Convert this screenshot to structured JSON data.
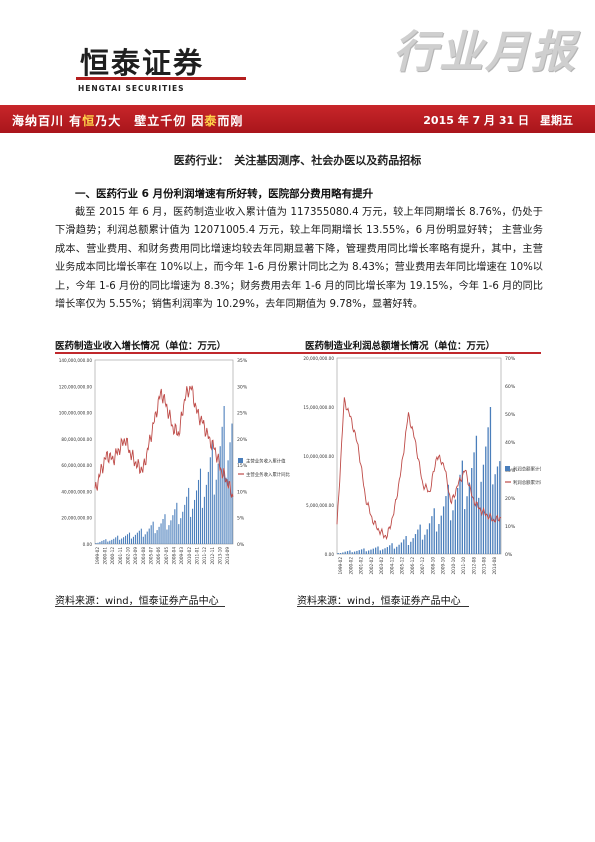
{
  "header": {
    "logo_cn": "恒泰证券",
    "logo_en": "HENGTAI SECURITIES",
    "report_type": "行业月报"
  },
  "banner": {
    "slogan_parts": [
      "海纳百川 有",
      "恒",
      "乃大　壁立千仞 因",
      "泰",
      "而刚"
    ],
    "date": "2015 年 7 月 31 日　星期五"
  },
  "doc_title": "医药行业：　关注基因测序、社会办医以及药品招标",
  "section_heading": "一、医药行业 6 月份利润增速有所好转，医院部分费用略有提升",
  "paragraph": "截至 2015 年 6 月，医药制造业收入累计值为 117355080.4 万元，较上年同期增长 8.76%，仍处于下滑趋势；利润总额累计值为 12071005.4 万元，较上年同期增长 13.55%，6 月份明显好转； 主营业务成本、营业费用、和财务费用同比增速均较去年同期显著下降，管理费用同比增长率略有提升，其中，主营业务成本同比增长率在 10%以上，而今年 1-6 月份累计同比之为 8.43%；营业费用去年同比增速在 10%以上，今年 1-6 月份的同比增速为 8.3%；财务费用去年 1-6 月的同比增长率为 19.15%，今年 1-6 月的同比增长率仅为 5.55%；销售利润率为 10.29%，去年同期值为 9.78%，显著好转。",
  "charts": {
    "left_title": "医药制造业收入增长情况（单位：万元）",
    "right_title": "医药制造业利润总额增长情况（单位：万元）",
    "left_source": "资料来源：wind，恒泰证券产品中心",
    "right_source": "资料来源：wind，恒泰证券产品中心"
  },
  "colors": {
    "brand_red": "#b41e1e",
    "bar_blue": "#4a7ebb",
    "line_red": "#be4b48"
  },
  "chart_data": [
    {
      "type": "bar",
      "title": "医药制造业收入增长情况（单位：万元）",
      "x_ticks": [
        "1999-02",
        "2000-01",
        "2000-12",
        "2001-11",
        "2002-10",
        "2003-09",
        "2004-08",
        "2005-07",
        "2006-06",
        "2007-05",
        "2008-04",
        "2009-03",
        "2010-02",
        "2011-01",
        "2011-12",
        "2012-11",
        "2013-10",
        "2014-09"
      ],
      "y_left_ticks": [
        "0.00",
        "20,000,000.00",
        "40,000,000.00",
        "60,000,000.00",
        "80,000,000.00",
        "100,000,000.00",
        "120,000,000.00",
        "140,000,000.00"
      ],
      "y_right_ticks": [
        "0%",
        "5%",
        "10%",
        "15%",
        "20%",
        "25%",
        "30%",
        "35%"
      ],
      "ylim_left": [
        0,
        140000000
      ],
      "ylim_right": [
        0,
        35
      ],
      "legend_position": "right",
      "series": [
        {
          "name": "主营业务收入累计值",
          "axis": "left",
          "type": "bar",
          "start": "1999-02",
          "end": "2015-06",
          "sampled_values_millions": [
            1,
            3,
            4,
            5,
            7,
            8,
            9,
            11,
            12,
            15,
            18,
            20,
            24,
            28,
            33,
            38,
            45,
            52,
            60,
            70,
            82,
            95,
            110,
            117
          ]
        },
        {
          "name": "主营业务收入累计同比",
          "axis": "right",
          "type": "line",
          "start": "1999-02",
          "end": "2015-06",
          "sampled_values_pct": [
            10,
            14,
            17,
            16,
            18,
            20,
            17,
            15,
            14,
            19,
            24,
            29,
            26,
            22,
            21,
            28,
            30,
            25,
            23,
            20,
            18,
            14,
            12,
            9
          ]
        }
      ]
    },
    {
      "type": "bar",
      "title": "医药制造业利润总额增长情况（单位：万元）",
      "x_ticks": [
        "1999-02",
        "2000-02",
        "2001-02",
        "2002-02",
        "2003-02",
        "2004-12",
        "2005-12",
        "2006-12",
        "2007-12",
        "2008-10",
        "2009-10",
        "2010-10",
        "2011-10",
        "2012-08",
        "2013-08",
        "2014-08"
      ],
      "y_left_ticks": [
        "0.00",
        "5,000,000.00",
        "10,000,000.00",
        "15,000,000.00",
        "20,000,000.00"
      ],
      "y_right_ticks": [
        "0%",
        "10%",
        "20%",
        "30%",
        "40%",
        "50%",
        "60%",
        "70%"
      ],
      "ylim_left": [
        0,
        20000000
      ],
      "ylim_right": [
        0,
        70
      ],
      "legend_position": "right",
      "series": [
        {
          "name": "利润总额累计值",
          "axis": "left",
          "type": "bar",
          "start": "1999-02",
          "end": "2015-06",
          "sampled_values_millions": [
            0.1,
            0.3,
            0.4,
            0.5,
            0.6,
            0.7,
            0.8,
            0.9,
            1.2,
            1.5,
            2.0,
            2.6,
            3.2,
            4.0,
            5.0,
            6.2,
            7.5,
            8.6,
            10.0,
            11.2,
            12.5,
            14.0,
            15.5,
            12.1
          ]
        },
        {
          "name": "利润总额累计同比",
          "axis": "right",
          "type": "line",
          "start": "1999-02",
          "end": "2015-06",
          "sampled_values_pct": [
            10,
            55,
            48,
            38,
            20,
            12,
            8,
            6,
            15,
            30,
            50,
            40,
            25,
            22,
            35,
            32,
            18,
            25,
            30,
            20,
            16,
            14,
            12,
            13
          ]
        }
      ]
    }
  ]
}
